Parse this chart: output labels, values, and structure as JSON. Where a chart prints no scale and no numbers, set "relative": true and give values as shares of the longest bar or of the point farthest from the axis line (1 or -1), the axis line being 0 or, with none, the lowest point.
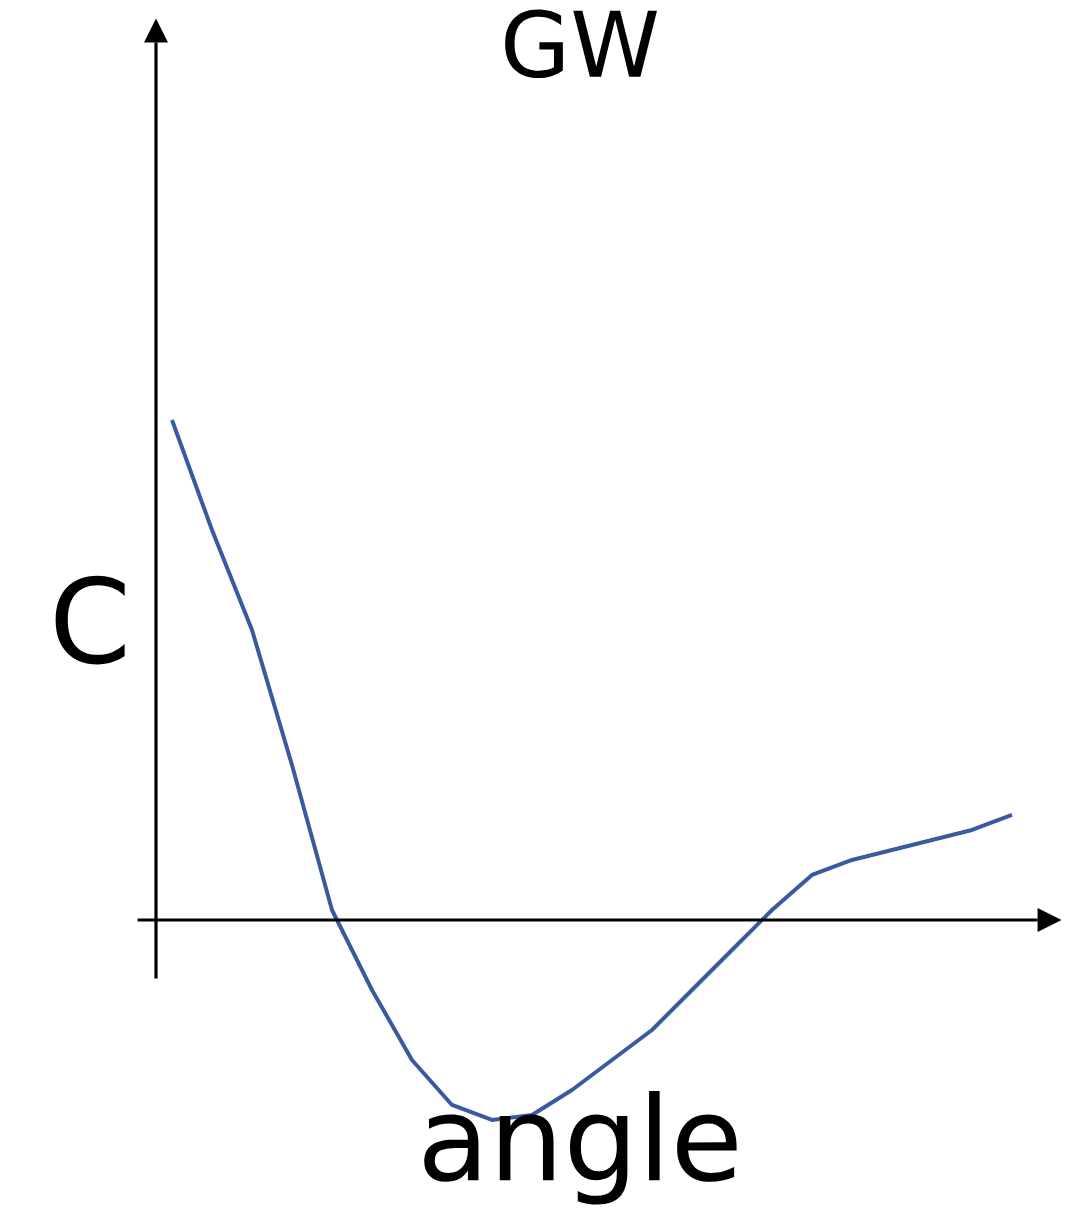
{
  "chart_data": {
    "type": "line",
    "title": "GW",
    "xlabel": "angle",
    "ylabel": "C",
    "relative": true,
    "marker": "none",
    "line_style": "solid",
    "categories": [
      null,
      null,
      null,
      null,
      null,
      null,
      null,
      null,
      null,
      null,
      null,
      null,
      null,
      null,
      null,
      null,
      null,
      null,
      null,
      null,
      null,
      null
    ],
    "series": [
      {
        "color": "#3a5aa0",
        "values": [
          1.0,
          0.78,
          0.58,
          0.31,
          0.02,
          -0.14,
          -0.28,
          -0.37,
          -0.4,
          -0.39,
          -0.34,
          -0.28,
          -0.22,
          -0.14,
          -0.06,
          0.02,
          0.09,
          0.12,
          0.14,
          0.16,
          0.18,
          0.21
        ]
      }
    ]
  }
}
